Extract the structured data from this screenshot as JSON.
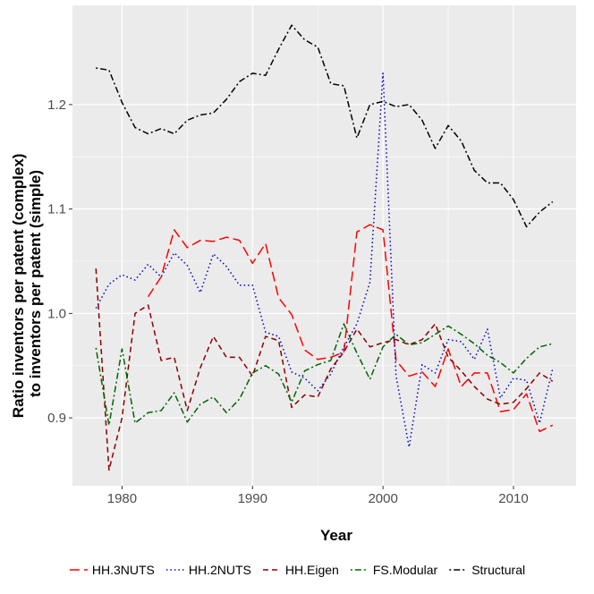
{
  "chart_data": {
    "type": "line",
    "xlabel": "Year",
    "ylabel_lines": [
      "Ratio inventors per patent (complex)",
      "to inventors per patent (simple)"
    ],
    "xlim": [
      1976.2,
      2014.8
    ],
    "ylim": [
      0.835,
      1.295
    ],
    "xticks": [
      1980,
      1990,
      2000,
      2010
    ],
    "xtick_labels": [
      "1980",
      "1990",
      "2000",
      "2010"
    ],
    "yticks": [
      0.9,
      1.0,
      1.1,
      1.2
    ],
    "ytick_labels": [
      "0.9",
      "1.0",
      "1.1",
      "1.2"
    ],
    "legend_position": "bottom",
    "x": [
      1978,
      1979,
      1980,
      1981,
      1982,
      1983,
      1984,
      1985,
      1986,
      1987,
      1988,
      1989,
      1990,
      1991,
      1992,
      1993,
      1994,
      1995,
      1996,
      1997,
      1998,
      1999,
      2000,
      2001,
      2002,
      2003,
      2004,
      2005,
      2006,
      2007,
      2008,
      2009,
      2010,
      2011,
      2012,
      2013
    ],
    "series": [
      {
        "name": "HH.3NUTS",
        "color": "#ff0000",
        "dash": "long",
        "values": [
          null,
          null,
          null,
          null,
          1.016,
          1.035,
          1.08,
          1.063,
          1.07,
          1.069,
          1.073,
          1.07,
          1.048,
          1.067,
          1.015,
          0.999,
          0.965,
          0.956,
          0.958,
          0.963,
          1.078,
          1.085,
          1.08,
          0.955,
          0.94,
          0.944,
          0.93,
          0.966,
          0.93,
          0.943,
          0.943,
          0.906,
          0.908,
          0.923,
          0.887,
          0.893
        ]
      },
      {
        "name": "HH.2NUTS",
        "color": "#0000cc",
        "dash": "dotted",
        "values": [
          1.005,
          1.028,
          1.037,
          1.032,
          1.047,
          1.035,
          1.058,
          1.046,
          1.02,
          1.057,
          1.045,
          1.027,
          1.027,
          0.982,
          0.978,
          0.944,
          0.938,
          0.926,
          0.942,
          0.968,
          0.99,
          1.03,
          1.23,
          0.94,
          0.872,
          0.951,
          0.943,
          0.975,
          0.973,
          0.956,
          0.985,
          0.919,
          0.938,
          0.936,
          0.895,
          0.947
        ]
      },
      {
        "name": "HH.Eigen",
        "color": "#8b0000",
        "dash": "dashed",
        "values": [
          1.043,
          0.85,
          0.9,
          1.0,
          1.008,
          0.955,
          0.958,
          0.907,
          0.948,
          0.978,
          0.958,
          0.958,
          0.94,
          0.978,
          0.974,
          0.91,
          0.922,
          0.92,
          0.947,
          0.963,
          0.985,
          0.968,
          0.972,
          0.975,
          0.97,
          0.975,
          0.99,
          0.958,
          0.945,
          0.93,
          0.918,
          0.913,
          0.915,
          0.928,
          0.943,
          0.935
        ]
      },
      {
        "name": "FS.Modular",
        "color": "#006400",
        "dash": "dotdash",
        "values": [
          0.967,
          0.893,
          0.966,
          0.895,
          0.905,
          0.907,
          0.924,
          0.896,
          0.913,
          0.92,
          0.905,
          0.918,
          0.943,
          0.95,
          0.942,
          0.915,
          0.945,
          0.951,
          0.955,
          0.99,
          0.962,
          0.937,
          0.968,
          0.98,
          0.97,
          0.972,
          0.98,
          0.988,
          0.98,
          0.971,
          0.96,
          0.953,
          0.943,
          0.957,
          0.968,
          0.971
        ]
      },
      {
        "name": "Structural",
        "color": "#000000",
        "dash": "dotdash",
        "values": [
          1.235,
          1.233,
          1.202,
          1.178,
          1.172,
          1.177,
          1.172,
          1.185,
          1.19,
          1.192,
          1.205,
          1.222,
          1.23,
          1.228,
          1.253,
          1.276,
          1.262,
          1.255,
          1.22,
          1.218,
          1.168,
          1.2,
          1.203,
          1.198,
          1.2,
          1.185,
          1.158,
          1.18,
          1.165,
          1.137,
          1.125,
          1.125,
          1.109,
          1.083,
          1.097,
          1.107
        ]
      }
    ]
  }
}
